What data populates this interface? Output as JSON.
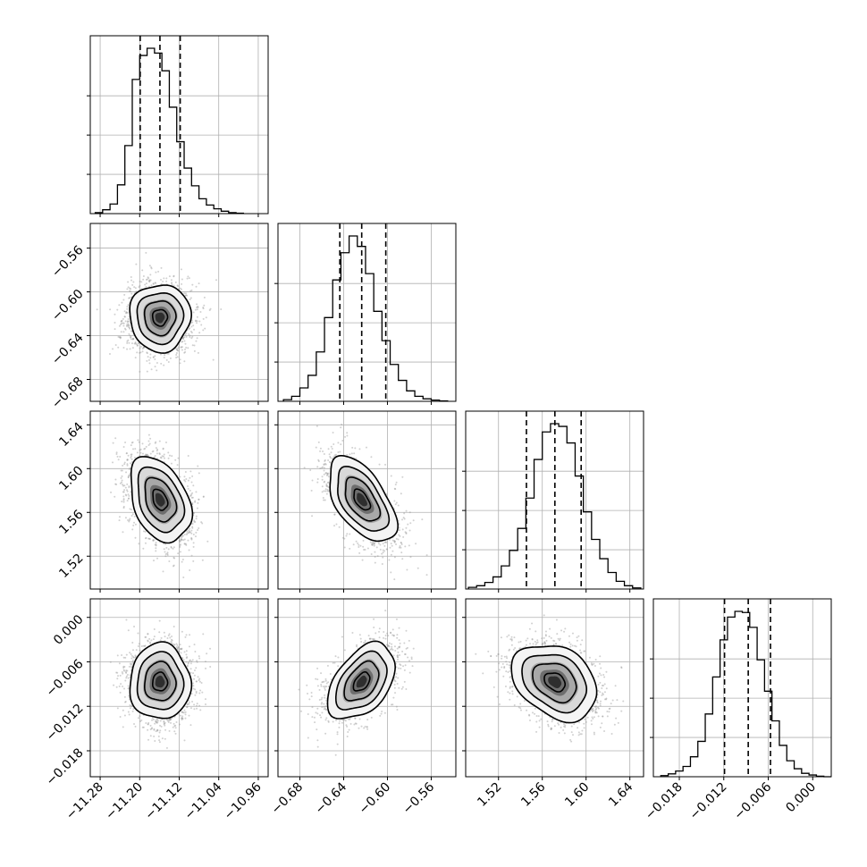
{
  "chart_data": {
    "type": "corner",
    "parameters": 4,
    "grid": true,
    "colors": {
      "axes": "#000000",
      "grid": "#b0b0b0",
      "points": "#9a9a9a",
      "contour": "#000000"
    },
    "histograms": [
      {
        "param": 0,
        "x_range": [
          -11.3,
          -10.94
        ],
        "quantiles": [
          -11.199,
          -11.159,
          -11.118
        ],
        "bin_edges": [
          -11.29,
          -11.275,
          -11.26,
          -11.245,
          -11.23,
          -11.215,
          -11.2,
          -11.185,
          -11.17,
          -11.155,
          -11.14,
          -11.125,
          -11.11,
          -11.095,
          -11.08,
          -11.065,
          -11.05,
          -11.035,
          -11.02,
          -11.005,
          -10.99
        ],
        "counts": [
          2,
          8,
          20,
          60,
          142,
          280,
          330,
          345,
          335,
          298,
          222,
          150,
          95,
          58,
          31,
          18,
          10,
          5,
          2,
          1
        ]
      },
      {
        "param": 1,
        "x_range": [
          -0.7,
          -0.5375
        ],
        "quantiles": [
          -0.6435,
          -0.6235,
          -0.6015
        ],
        "bin_edges": [
          -0.695,
          -0.6875,
          -0.68,
          -0.6725,
          -0.665,
          -0.6575,
          -0.65,
          -0.6425,
          -0.635,
          -0.6275,
          -0.62,
          -0.6125,
          -0.605,
          -0.5975,
          -0.59,
          -0.5825,
          -0.575,
          -0.5675,
          -0.56,
          -0.5525,
          -0.545
        ],
        "counts": [
          4,
          12,
          32,
          62,
          118,
          200,
          290,
          355,
          395,
          370,
          305,
          215,
          145,
          88,
          50,
          25,
          12,
          6,
          3,
          1
        ]
      },
      {
        "param": 2,
        "x_range": [
          1.49,
          1.6525
        ],
        "quantiles": [
          1.5455,
          1.5715,
          1.5955
        ],
        "bin_edges": [
          1.4925,
          1.5,
          1.5075,
          1.515,
          1.5225,
          1.53,
          1.5375,
          1.545,
          1.5525,
          1.56,
          1.5675,
          1.575,
          1.5825,
          1.59,
          1.5975,
          1.605,
          1.6125,
          1.62,
          1.6275,
          1.635,
          1.6425,
          1.65
        ],
        "counts": [
          3,
          6,
          12,
          22,
          42,
          70,
          110,
          165,
          235,
          285,
          300,
          295,
          265,
          205,
          140,
          90,
          55,
          30,
          14,
          6,
          2
        ]
      },
      {
        "param": 3,
        "x_range": [
          -0.0215,
          0.0025
        ],
        "quantiles": [
          -0.0119,
          -0.0087,
          -0.0057
        ],
        "bin_edges": [
          -0.0205,
          -0.0195,
          -0.0185,
          -0.0175,
          -0.0165,
          -0.0155,
          -0.0145,
          -0.0135,
          -0.0125,
          -0.0115,
          -0.0105,
          -0.0095,
          -0.0085,
          -0.0075,
          -0.0065,
          -0.0055,
          -0.0045,
          -0.0035,
          -0.0025,
          -0.0015,
          -0.0005,
          0.0005,
          0.0015,
          0.0025
        ],
        "counts": [
          2,
          5,
          10,
          18,
          35,
          62,
          110,
          175,
          240,
          280,
          290,
          288,
          262,
          205,
          150,
          98,
          55,
          28,
          14,
          6,
          3,
          1,
          0
        ]
      }
    ],
    "scatter_panels": [
      {
        "x_param": 0,
        "y_param": 1,
        "x_center": -11.159,
        "y_center": -0.6235,
        "sx": 0.03,
        "sy": 0.015,
        "rho": 0.0
      },
      {
        "x_param": 0,
        "y_param": 2,
        "x_center": -11.159,
        "y_center": 1.5715,
        "sx": 0.03,
        "sy": 0.019,
        "rho": -0.35
      },
      {
        "x_param": 1,
        "y_param": 2,
        "x_center": -0.6235,
        "y_center": 1.5715,
        "sx": 0.015,
        "sy": 0.019,
        "rho": -0.55
      },
      {
        "x_param": 0,
        "y_param": 3,
        "x_center": -11.159,
        "y_center": -0.0087,
        "sx": 0.03,
        "sy": 0.0025,
        "rho": 0.0
      },
      {
        "x_param": 1,
        "y_param": 3,
        "x_center": -0.6235,
        "y_center": -0.0087,
        "sx": 0.015,
        "sy": 0.0025,
        "rho": 0.45
      },
      {
        "x_param": 2,
        "y_param": 3,
        "x_center": 1.5715,
        "y_center": -0.0087,
        "sx": 0.019,
        "sy": 0.0025,
        "rho": -0.3
      }
    ],
    "param_ranges": [
      [
        -11.3,
        -10.94
      ],
      [
        -0.7,
        -0.5375
      ],
      [
        1.49,
        1.6525
      ],
      [
        -0.0215,
        0.0025
      ]
    ],
    "axis_ticks": [
      {
        "param": 0,
        "values": [
          -11.28,
          -11.2,
          -11.12,
          -11.04,
          -10.96
        ],
        "labels": [
          "−11.28",
          "−11.20",
          "−11.12",
          "−11.04",
          "−10.96"
        ]
      },
      {
        "param": 1,
        "values": [
          -0.68,
          -0.64,
          -0.6,
          -0.56
        ],
        "labels": [
          "−0.68",
          "−0.64",
          "−0.60",
          "−0.56"
        ]
      },
      {
        "param": 2,
        "values": [
          1.52,
          1.56,
          1.6,
          1.64
        ],
        "labels": [
          "1.52",
          "1.56",
          "1.60",
          "1.64"
        ]
      },
      {
        "param": 3,
        "values": [
          -0.018,
          -0.012,
          -0.006,
          0.0
        ],
        "labels": [
          "−0.018",
          "−0.012",
          "−0.006",
          "0.000"
        ]
      }
    ]
  }
}
